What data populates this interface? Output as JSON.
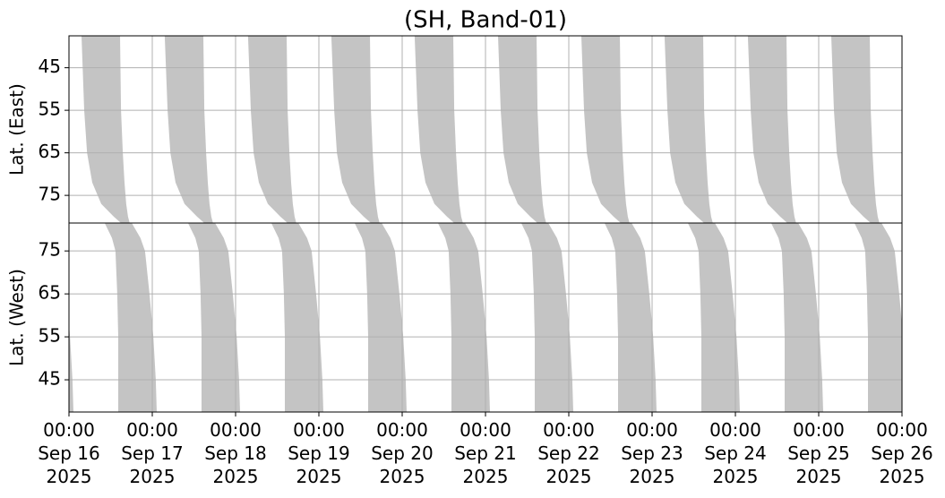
{
  "chart_data": {
    "type": "swath",
    "title": "(SH, Band-01)",
    "xlim": [
      "2025-09-16",
      "2025-09-26"
    ],
    "xticks": [
      {
        "value": "2025-09-16",
        "label": "00:00\nSep 16\n2025"
      },
      {
        "value": "2025-09-17",
        "label": "00:00\nSep 17\n2025"
      },
      {
        "value": "2025-09-18",
        "label": "00:00\nSep 18\n2025"
      },
      {
        "value": "2025-09-19",
        "label": "00:00\nSep 19\n2025"
      },
      {
        "value": "2025-09-20",
        "label": "00:00\nSep 20\n2025"
      },
      {
        "value": "2025-09-21",
        "label": "00:00\nSep 21\n2025"
      },
      {
        "value": "2025-09-22",
        "label": "00:00\nSep 22\n2025"
      },
      {
        "value": "2025-09-23",
        "label": "00:00\nSep 23\n2025"
      },
      {
        "value": "2025-09-24",
        "label": "00:00\nSep 24\n2025"
      },
      {
        "value": "2025-09-25",
        "label": "00:00\nSep 25\n2025"
      },
      {
        "value": "2025-09-26",
        "label": "00:00\nSep 26\n2025"
      }
    ],
    "grid": true,
    "color": "#c4c4c4",
    "panels": [
      {
        "ylabel": "Lat. (East)",
        "ylim": [
          81.5,
          37.5
        ],
        "yticks": [
          45,
          55,
          65,
          75
        ],
        "lat": [
          37.5,
          55,
          65,
          72,
          77,
          80,
          81.5
        ],
        "start_hours": [
          3.6,
          4.4,
          5.2,
          6.7,
          9.3,
          12.9,
          15.0
        ],
        "end_hours": [
          14.7,
          15.0,
          15.5,
          16.0,
          16.5,
          17.0,
          17.5
        ],
        "days": [
          "2025-09-16",
          "2025-09-17",
          "2025-09-18",
          "2025-09-19",
          "2025-09-20",
          "2025-09-21",
          "2025-09-22",
          "2025-09-23",
          "2025-09-24",
          "2025-09-25"
        ]
      },
      {
        "ylabel": "Lat. (West)",
        "ylim": [
          37.5,
          81.5
        ],
        "yticks": [
          45,
          55,
          65,
          75
        ],
        "lat": [
          81.5,
          78,
          75,
          65,
          55,
          45,
          37.5
        ],
        "start_hours": [
          10.3,
          12.4,
          13.4,
          13.9,
          14.2,
          14.2,
          14.2
        ],
        "end_hours": [
          18.1,
          20.6,
          21.9,
          23.2,
          24.3,
          25.0,
          25.3
        ],
        "days": [
          "2025-09-15",
          "2025-09-16",
          "2025-09-17",
          "2025-09-18",
          "2025-09-19",
          "2025-09-20",
          "2025-09-21",
          "2025-09-22",
          "2025-09-23",
          "2025-09-24",
          "2025-09-25"
        ]
      }
    ]
  }
}
